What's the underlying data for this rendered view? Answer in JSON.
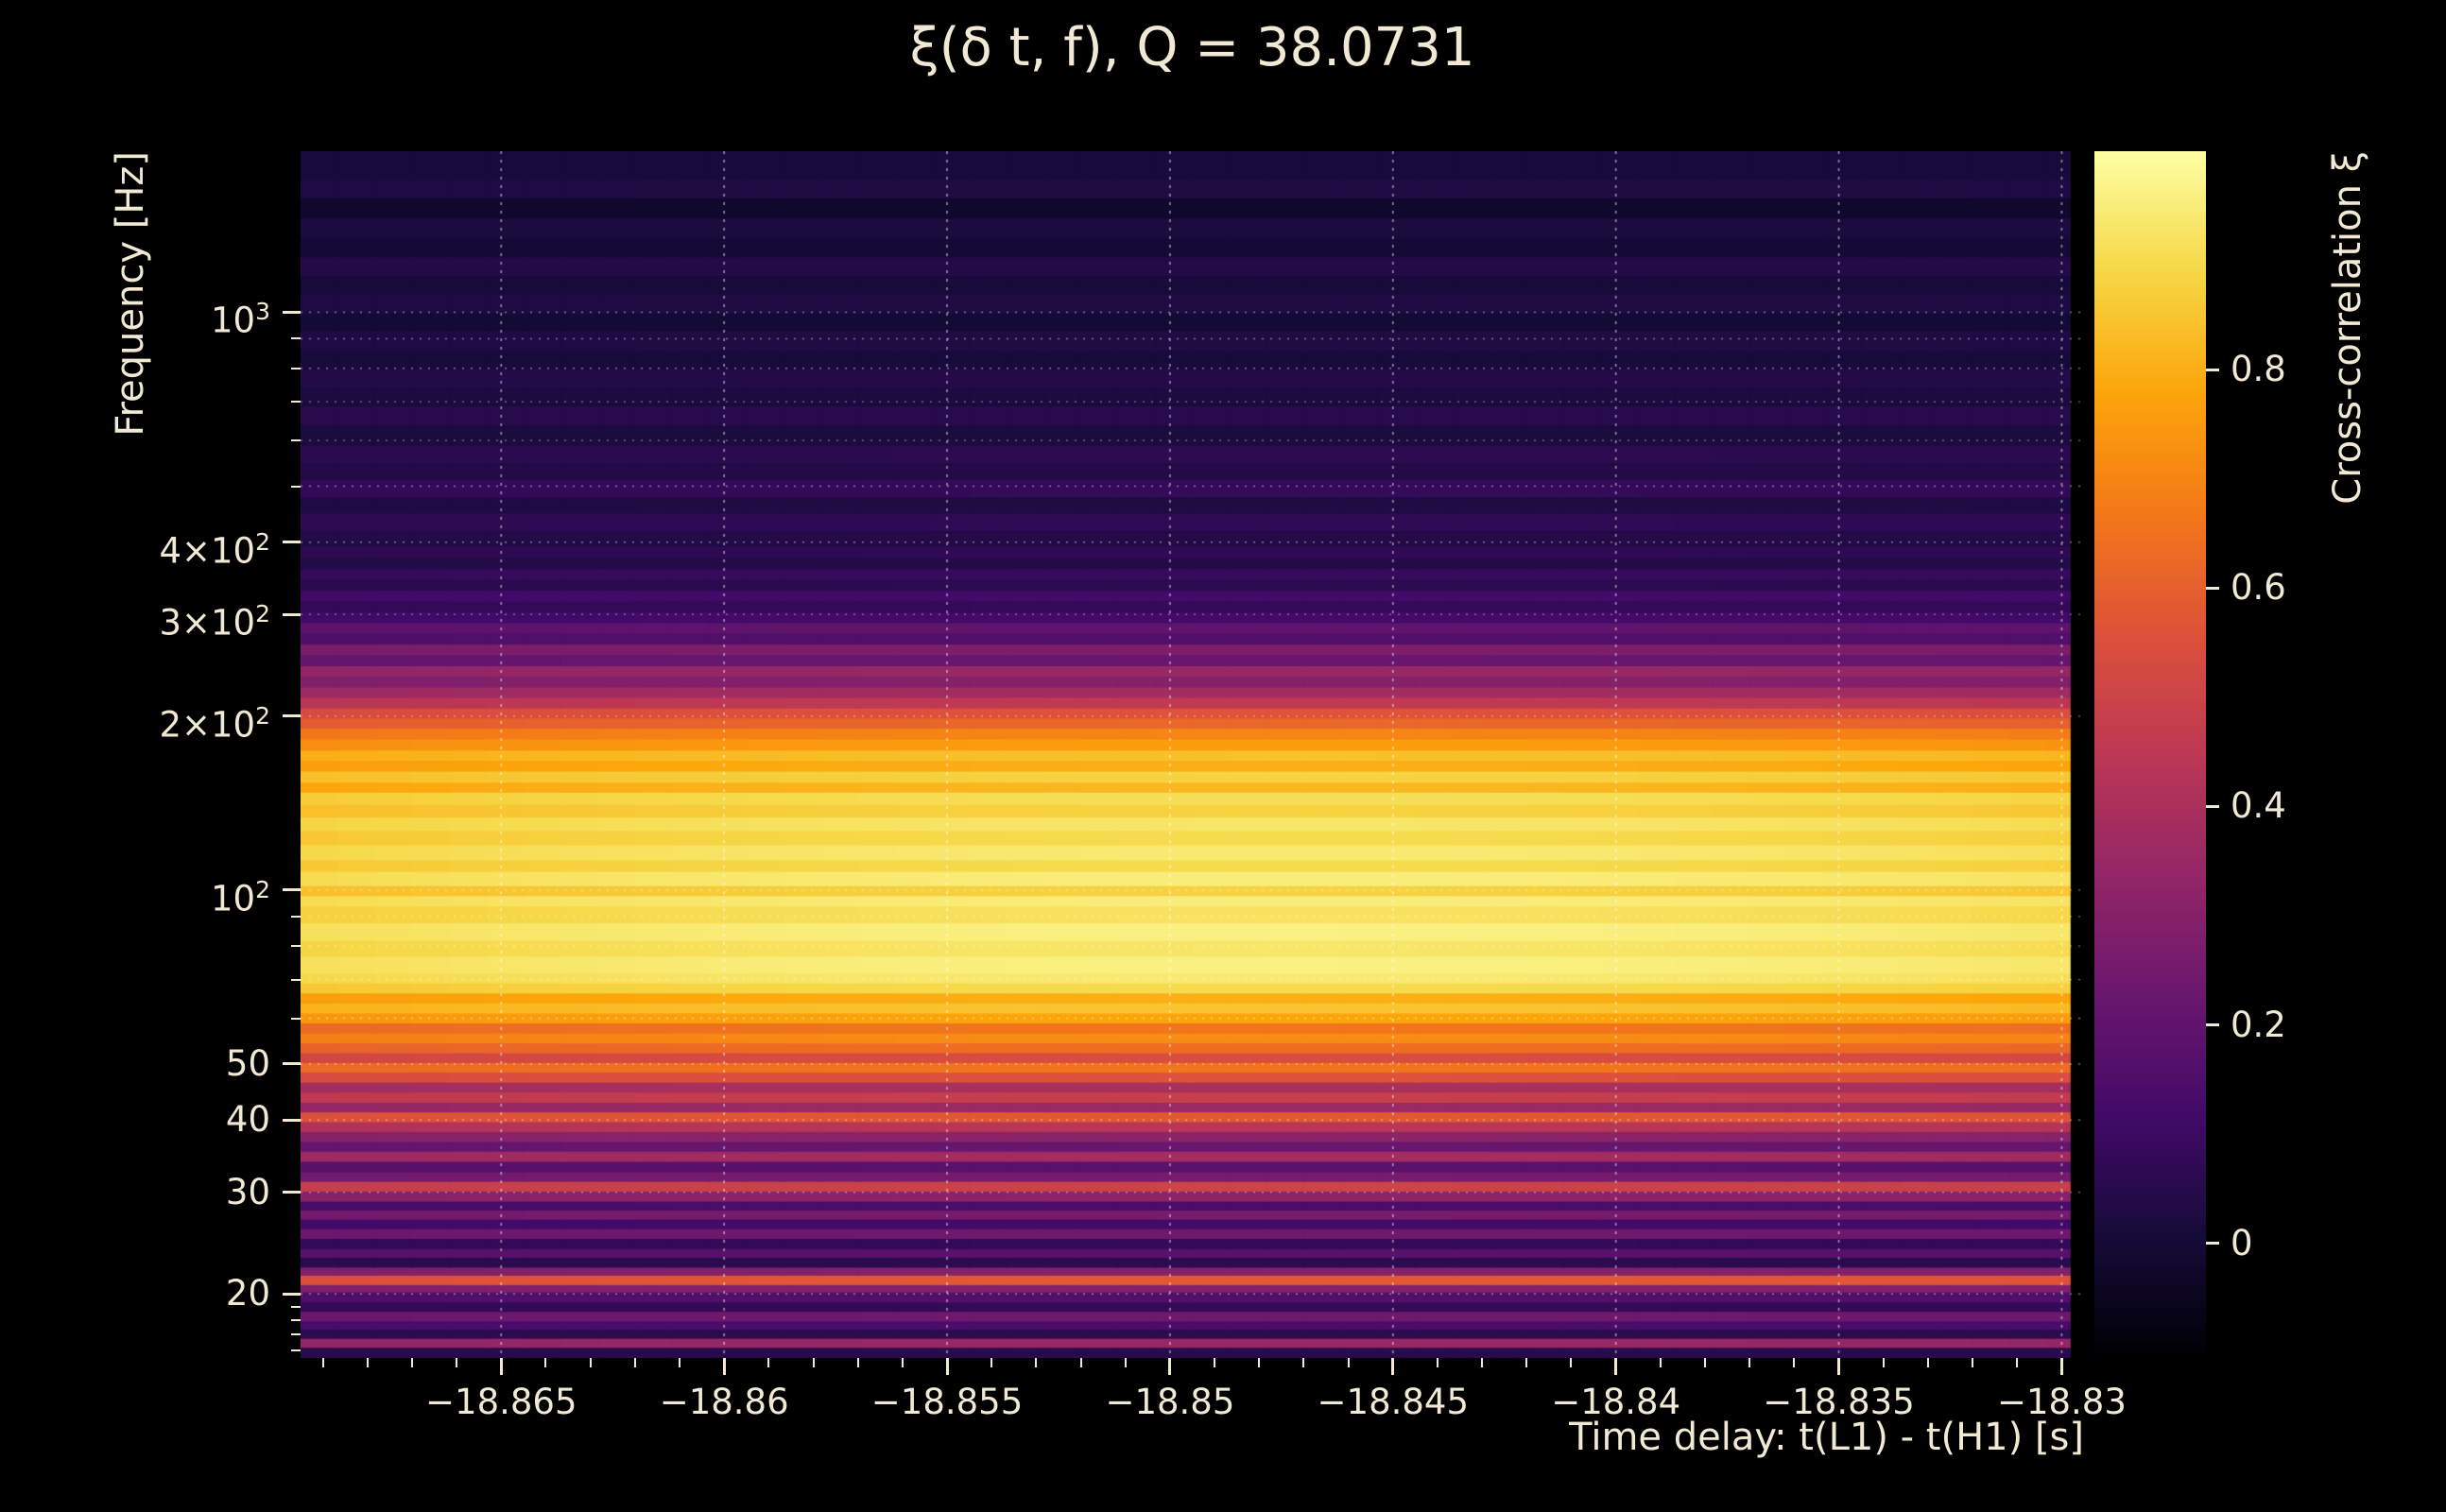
{
  "title": "ξ(δ t, f), Q = 38.0731",
  "colors": {
    "background": "#000000",
    "text": "#f2e9d4",
    "grid": "#ffffff"
  },
  "x_axis": {
    "label": "Time delay: t(L1) - t(H1) [s]",
    "tick_values": [
      -18.865,
      -18.86,
      -18.855,
      -18.85,
      -18.845,
      -18.84,
      -18.835,
      -18.83
    ],
    "tick_labels": [
      "−18.865",
      "−18.86",
      "−18.855",
      "−18.85",
      "−18.845",
      "−18.84",
      "−18.835",
      "−18.83"
    ],
    "minor_step": 0.001
  },
  "y_axis": {
    "label": "Frequency [Hz]",
    "major_ticks": [
      {
        "f": 1000,
        "prefix": "",
        "exp": "3"
      },
      {
        "f": 400,
        "prefix": "4×",
        "exp": "2"
      },
      {
        "f": 300,
        "prefix": "3×",
        "exp": "2"
      },
      {
        "f": 200,
        "prefix": "2×",
        "exp": "2"
      },
      {
        "f": 100,
        "prefix": "",
        "exp": "2"
      },
      {
        "f": 50,
        "text": "50"
      },
      {
        "f": 40,
        "text": "40"
      },
      {
        "f": 30,
        "text": "30"
      },
      {
        "f": 20,
        "text": "20"
      }
    ],
    "minor_ticks": [
      16,
      17,
      18,
      19,
      60,
      70,
      80,
      90,
      500,
      600,
      700,
      800,
      900
    ],
    "grid_freqs": [
      20,
      30,
      40,
      50,
      60,
      70,
      80,
      90,
      100,
      200,
      300,
      400,
      500,
      600,
      700,
      800,
      900,
      1000
    ]
  },
  "colorbar": {
    "label": "Cross-correlation ξ",
    "tick_values": [
      0,
      0.2,
      0.4,
      0.6,
      0.8
    ],
    "tick_labels": [
      "0",
      "0.2",
      "0.4",
      "0.6",
      "0.8"
    ]
  },
  "chart_data": {
    "type": "heatmap",
    "title": "ξ(δ t, f), Q = 38.0731",
    "q_value": 38.0731,
    "xlabel": "Time delay: t(L1) - t(H1) [s]",
    "ylabel": "Frequency [Hz]",
    "value_label": "Cross-correlation ξ",
    "colormap": "inferno",
    "legend": "colorbar-right",
    "grid": true,
    "x_range": [
      -18.8695,
      -18.8295
    ],
    "data_xmax": -18.8298,
    "y_range_hz": [
      15.5,
      1900
    ],
    "y_scale": "log",
    "value_range": [
      -0.105,
      1.0
    ],
    "time_envelope": {
      "center": -18.847,
      "half_width": 0.0225,
      "edge_drop": 0.05
    },
    "freq_bands": [
      [
        15.5,
        16.2,
        0.05
      ],
      [
        16.2,
        16.8,
        0.35
      ],
      [
        16.8,
        17.4,
        0.06
      ],
      [
        17.4,
        18.0,
        0.14
      ],
      [
        18.0,
        18.7,
        0.24
      ],
      [
        18.7,
        19.4,
        0.08
      ],
      [
        19.4,
        20.2,
        0.16
      ],
      [
        20.2,
        20.8,
        0.3
      ],
      [
        20.8,
        21.6,
        0.58
      ],
      [
        21.6,
        22.3,
        0.3
      ],
      [
        22.3,
        23.2,
        0.06
      ],
      [
        23.2,
        24.0,
        0.18
      ],
      [
        24.0,
        25.0,
        0.08
      ],
      [
        25.0,
        26.0,
        0.24
      ],
      [
        26.0,
        27.0,
        0.12
      ],
      [
        27.0,
        28.0,
        0.26
      ],
      [
        28.0,
        29.0,
        0.14
      ],
      [
        29.0,
        30.2,
        0.32
      ],
      [
        30.2,
        31.4,
        0.5
      ],
      [
        31.4,
        32.6,
        0.26
      ],
      [
        32.6,
        34.0,
        0.18
      ],
      [
        34.0,
        35.4,
        0.38
      ],
      [
        35.4,
        36.8,
        0.22
      ],
      [
        36.8,
        38.3,
        0.32
      ],
      [
        38.3,
        39.8,
        0.44
      ],
      [
        39.8,
        41.4,
        0.58
      ],
      [
        41.4,
        43.0,
        0.36
      ],
      [
        43.0,
        44.8,
        0.48
      ],
      [
        44.8,
        46.6,
        0.4
      ],
      [
        46.6,
        48.5,
        0.56
      ],
      [
        48.5,
        50.4,
        0.66
      ],
      [
        50.4,
        52.4,
        0.54
      ],
      [
        52.4,
        54.5,
        0.64
      ],
      [
        54.5,
        56.7,
        0.72
      ],
      [
        56.7,
        59.0,
        0.66
      ],
      [
        59.0,
        61.4,
        0.78
      ],
      [
        61.4,
        63.9,
        0.85
      ],
      [
        63.9,
        66.5,
        0.8
      ],
      [
        66.5,
        69.2,
        0.9
      ],
      [
        69.2,
        72.0,
        0.94
      ],
      [
        72.0,
        77.0,
        0.96
      ],
      [
        77.0,
        82.0,
        0.93
      ],
      [
        82.0,
        88.0,
        0.96
      ],
      [
        88.0,
        94.0,
        0.92
      ],
      [
        94.0,
        98.0,
        0.95
      ],
      [
        98.0,
        102.0,
        0.88
      ],
      [
        102.0,
        108.0,
        0.95
      ],
      [
        108.0,
        113.0,
        0.9
      ],
      [
        113.0,
        120.0,
        0.94
      ],
      [
        120.0,
        127.0,
        0.9
      ],
      [
        127.0,
        134.0,
        0.93
      ],
      [
        134.0,
        141.0,
        0.88
      ],
      [
        141.0,
        148.0,
        0.91
      ],
      [
        148.0,
        154.0,
        0.82
      ],
      [
        154.0,
        161.0,
        0.88
      ],
      [
        161.0,
        168.0,
        0.8
      ],
      [
        168.0,
        175.0,
        0.84
      ],
      [
        175.0,
        183.0,
        0.76
      ],
      [
        183.0,
        191.0,
        0.7
      ],
      [
        191.0,
        199.0,
        0.62
      ],
      [
        199.0,
        207.0,
        0.56
      ],
      [
        207.0,
        216.0,
        0.46
      ],
      [
        216.0,
        225.0,
        0.38
      ],
      [
        225.0,
        235.0,
        0.3
      ],
      [
        235.0,
        245.0,
        0.35
      ],
      [
        245.0,
        256.0,
        0.22
      ],
      [
        256.0,
        267.0,
        0.28
      ],
      [
        267.0,
        279.0,
        0.16
      ],
      [
        279.0,
        291.0,
        0.2
      ],
      [
        291.0,
        304.0,
        0.12
      ],
      [
        304.0,
        317.0,
        0.08
      ],
      [
        317.0,
        331.0,
        0.12
      ],
      [
        331.0,
        346.0,
        0.06
      ],
      [
        346.0,
        361.0,
        0.09
      ],
      [
        361.0,
        377.0,
        0.04
      ],
      [
        377.0,
        394.0,
        0.07
      ],
      [
        394.0,
        420.0,
        0.04
      ],
      [
        420.0,
        450.0,
        0.07
      ],
      [
        450.0,
        480.0,
        0.03
      ],
      [
        480.0,
        515.0,
        0.08
      ],
      [
        515.0,
        550.0,
        0.04
      ],
      [
        550.0,
        590.0,
        0.06
      ],
      [
        590.0,
        640.0,
        0.02
      ],
      [
        640.0,
        690.0,
        0.05
      ],
      [
        690.0,
        740.0,
        0.02
      ],
      [
        740.0,
        800.0,
        0.04
      ],
      [
        800.0,
        860.0,
        0.01
      ],
      [
        860.0,
        930.0,
        0.03
      ],
      [
        930.0,
        1000.0,
        0.0
      ],
      [
        1000.0,
        1080.0,
        0.03
      ],
      [
        1080.0,
        1160.0,
        0.01
      ],
      [
        1160.0,
        1250.0,
        0.04
      ],
      [
        1250.0,
        1350.0,
        0.0
      ],
      [
        1350.0,
        1460.0,
        0.02
      ],
      [
        1460.0,
        1580.0,
        -0.02
      ],
      [
        1580.0,
        1700.0,
        0.03
      ],
      [
        1700.0,
        1900.0,
        0.01
      ]
    ]
  }
}
